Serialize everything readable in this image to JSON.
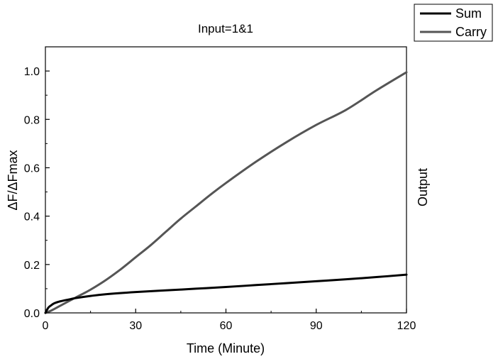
{
  "chart_data": {
    "type": "line",
    "title": "Input=1&1",
    "xlabel": "Time (Minute)",
    "ylabel": "ΔF/ΔFmax",
    "y2label": "Output",
    "xlim": [
      0,
      120
    ],
    "ylim": [
      0,
      1.1
    ],
    "xticks": [
      0,
      30,
      60,
      90,
      120
    ],
    "xtick_labels": [
      "0",
      "30",
      "60",
      "90",
      "120"
    ],
    "yticks": [
      0,
      0.2,
      0.4,
      0.6,
      0.8,
      1.0
    ],
    "ytick_labels": [
      "0.0",
      "0.2",
      "0.4",
      "0.6",
      "0.8",
      "1.0"
    ],
    "grid": false,
    "legend": "top-right, outside plot",
    "series": [
      {
        "name": "Sum",
        "color": "#000000",
        "x": [
          0,
          1,
          2,
          3,
          5,
          8,
          10,
          15,
          20,
          30,
          40,
          50,
          60,
          70,
          80,
          90,
          100,
          110,
          120
        ],
        "y": [
          0,
          0.022,
          0.032,
          0.04,
          0.048,
          0.056,
          0.061,
          0.07,
          0.077,
          0.086,
          0.093,
          0.1,
          0.107,
          0.115,
          0.123,
          0.131,
          0.139,
          0.148,
          0.158
        ]
      },
      {
        "name": "Carry",
        "color": "#555555",
        "x": [
          0,
          2,
          5,
          8,
          10,
          12,
          15,
          20,
          25,
          30,
          35,
          40,
          45,
          50,
          55,
          60,
          70,
          80,
          90,
          100,
          110,
          120
        ],
        "y": [
          0,
          0.01,
          0.03,
          0.05,
          0.063,
          0.076,
          0.096,
          0.135,
          0.18,
          0.23,
          0.28,
          0.335,
          0.39,
          0.44,
          0.49,
          0.537,
          0.625,
          0.705,
          0.777,
          0.84,
          0.92,
          0.995
        ]
      }
    ]
  }
}
